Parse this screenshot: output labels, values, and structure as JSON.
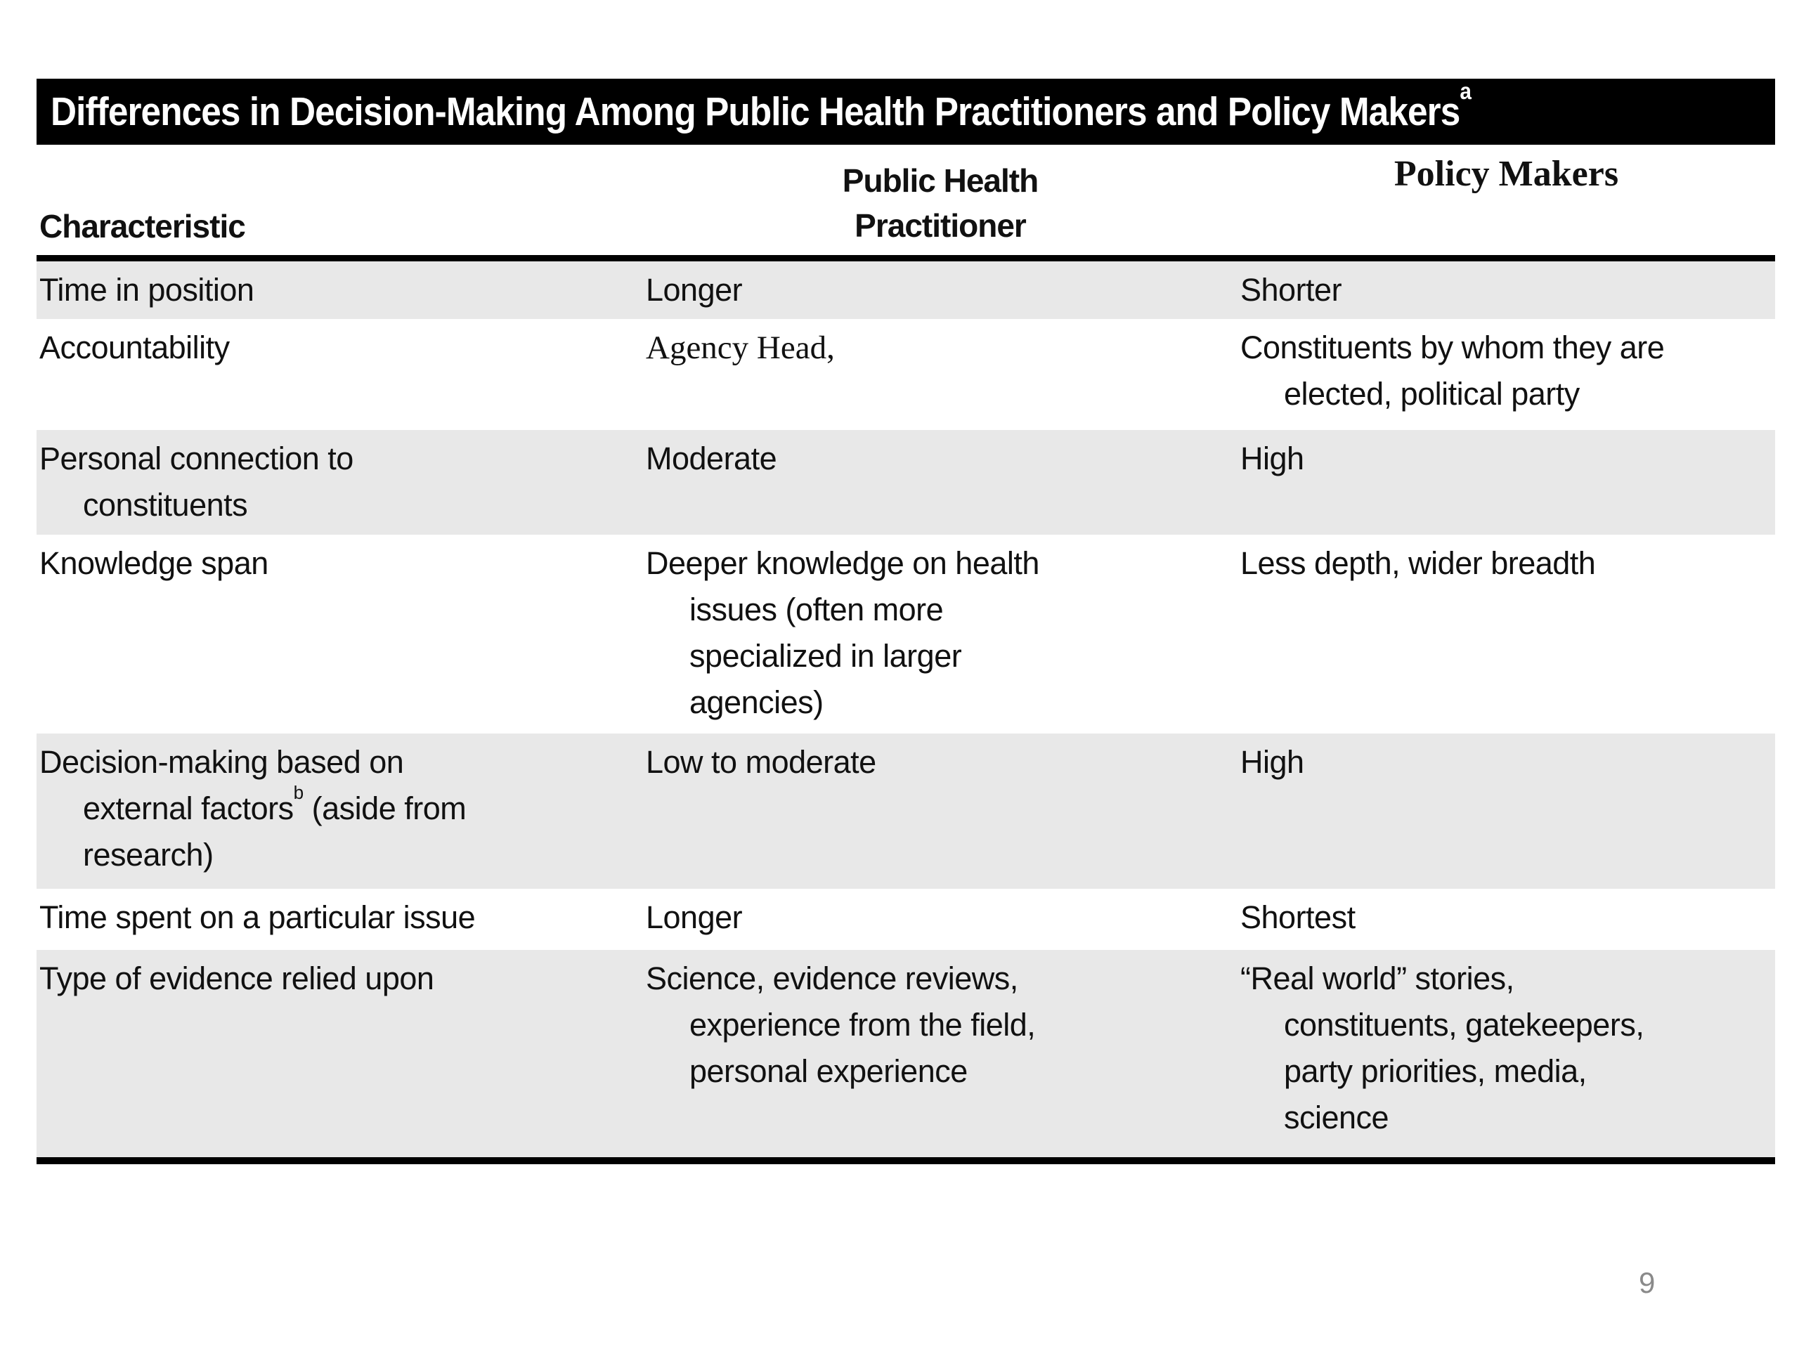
{
  "page": {
    "number": "9"
  },
  "table": {
    "title": "Differences in Decision-Making Among Public Health Practitioners and Policy Makers",
    "title_superscript": "a",
    "header": {
      "characteristic": "Characteristic",
      "practitioner": "Public Health\nPractitioner",
      "policy_makers": "Policy Makers"
    },
    "rows": [
      {
        "characteristic": "Time in position",
        "practitioner": "Longer",
        "policy_makers": "Shorter"
      },
      {
        "characteristic": "Accountability",
        "practitioner": "Agency Head,",
        "policy_makers": "Constituents by whom they are\nelected, political party"
      },
      {
        "characteristic": "Personal connection to\nconstituents",
        "practitioner": "Moderate",
        "policy_makers": "High"
      },
      {
        "characteristic": "Knowledge span",
        "practitioner": "Deeper knowledge on health\nissues (often more\nspecialized in larger\nagencies)",
        "policy_makers": "Less depth, wider breadth"
      },
      {
        "characteristic_pre": "Decision-making based on\nexternal factors",
        "characteristic_sup": "b",
        "characteristic_post": " (aside from\nresearch)",
        "practitioner": "Low to moderate",
        "policy_makers": "High"
      },
      {
        "characteristic": "Time spent on a particular issue",
        "practitioner": "Longer",
        "policy_makers": "Shortest"
      },
      {
        "characteristic": "Type of evidence relied upon",
        "practitioner": "Science, evidence reviews,\nexperience from the field,\npersonal experience",
        "policy_makers": "“Real world” stories,\nconstituents, gatekeepers,\nparty priorities, media,\nscience"
      }
    ],
    "colors": {
      "title_bar_background": "#000000",
      "title_bar_text": "#ffffff",
      "row_shade": "#e8e8e8",
      "body_text": "#111111",
      "page_number": "#8a8a8a"
    }
  }
}
